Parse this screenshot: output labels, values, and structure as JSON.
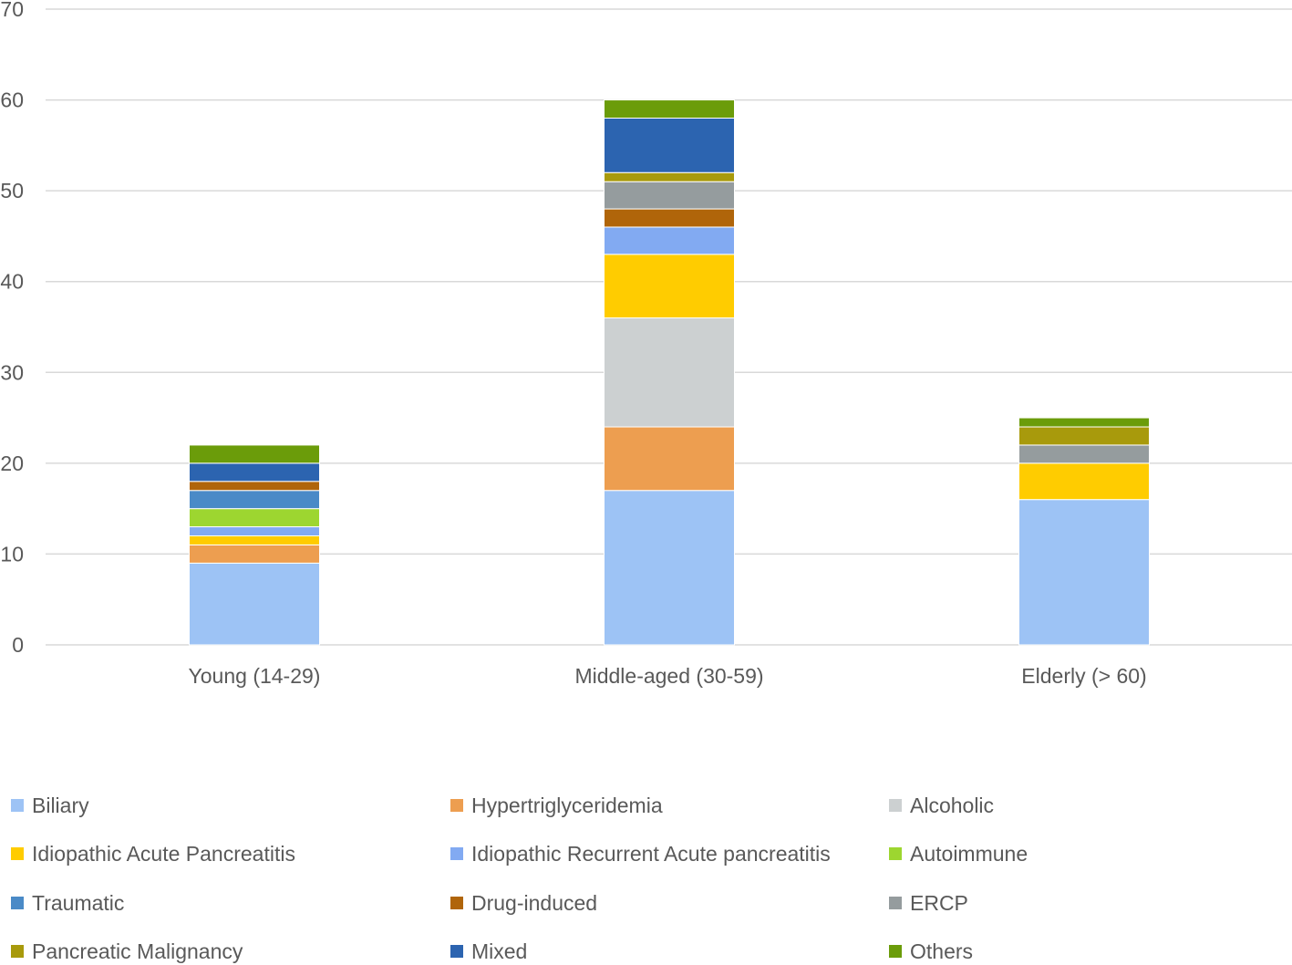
{
  "chart_data": {
    "type": "bar",
    "stacked": true,
    "title": "",
    "xlabel": "",
    "ylabel": "",
    "ylim": [
      0,
      70
    ],
    "yticks": [
      0,
      10,
      20,
      30,
      40,
      50,
      60,
      70
    ],
    "grid": true,
    "legend_position": "bottom",
    "categories": [
      "Young (14-29)",
      "Middle-aged (30-59)",
      "Elderly (> 60)"
    ],
    "series": [
      {
        "name": "Biliary",
        "color": "#9DC3F5",
        "values": [
          9,
          17,
          16
        ]
      },
      {
        "name": "Hypertriglyceridemia",
        "color": "#ED9E50",
        "values": [
          2,
          7,
          0
        ]
      },
      {
        "name": "Alcoholic",
        "color": "#CCD0D1",
        "values": [
          0,
          12,
          0
        ]
      },
      {
        "name": "Idiopathic Acute Pancreatitis",
        "color": "#FFCC00",
        "values": [
          1,
          7,
          4
        ]
      },
      {
        "name": "Idiopathic Recurrent Acute pancreatitis",
        "color": "#82AAF2",
        "values": [
          1,
          3,
          0
        ]
      },
      {
        "name": "Autoimmune",
        "color": "#9DD630",
        "values": [
          2,
          0,
          0
        ]
      },
      {
        "name": "Traumatic",
        "color": "#4A8AC7",
        "values": [
          2,
          0,
          0
        ]
      },
      {
        "name": "Drug-induced",
        "color": "#B0650A",
        "values": [
          1,
          2,
          0
        ]
      },
      {
        "name": "ERCP",
        "color": "#959C9E",
        "values": [
          0,
          3,
          2
        ]
      },
      {
        "name": "Pancreatic Malignancy",
        "color": "#A89A0C",
        "values": [
          0,
          1,
          2
        ]
      },
      {
        "name": "Mixed",
        "color": "#2C64B0",
        "values": [
          2,
          6,
          0
        ]
      },
      {
        "name": "Others",
        "color": "#6B9C0A",
        "values": [
          2,
          2,
          1
        ]
      }
    ]
  }
}
